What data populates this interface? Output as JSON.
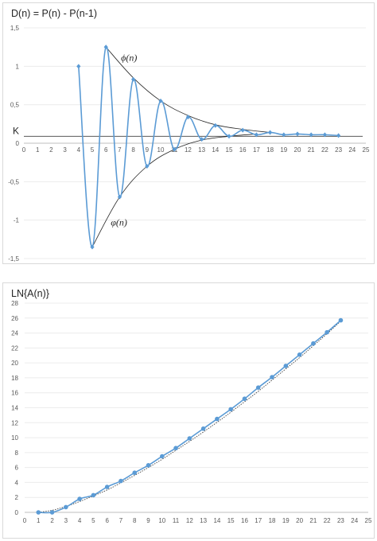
{
  "chart_data": [
    {
      "type": "line",
      "title": "D(n) = P(n) - P(n-1)",
      "xlim": [
        0,
        25
      ],
      "ylim": [
        -1.5,
        1.5
      ],
      "xticks": [
        0,
        1,
        2,
        3,
        4,
        5,
        6,
        7,
        8,
        9,
        10,
        11,
        12,
        13,
        14,
        15,
        16,
        17,
        18,
        19,
        20,
        21,
        22,
        23,
        24,
        25
      ],
      "yticks": [
        -1.5,
        -1,
        -0.5,
        0,
        0.5,
        1,
        1.5
      ],
      "ytick_labels": [
        "-1,5",
        "-1",
        "-0,5",
        "0",
        "0,5",
        "1",
        "1,5"
      ],
      "series": [
        {
          "x": [
            4,
            5,
            6,
            7,
            8,
            9,
            10,
            11,
            12,
            13,
            14,
            15,
            16,
            17,
            18,
            19,
            20,
            21,
            22,
            23
          ],
          "y": [
            1.0,
            -1.35,
            1.25,
            -0.7,
            0.83,
            -0.3,
            0.55,
            -0.08,
            0.34,
            0.05,
            0.23,
            0.09,
            0.17,
            0.11,
            0.14,
            0.11,
            0.12,
            0.11,
            0.11,
            0.1
          ],
          "color": "#5b9bd5"
        }
      ],
      "envelope_upper": {
        "x": [
          6,
          8,
          10,
          12,
          14,
          16,
          18
        ],
        "y": [
          1.25,
          0.85,
          0.55,
          0.36,
          0.24,
          0.18,
          0.14
        ]
      },
      "envelope_lower": {
        "x": [
          5,
          7,
          9,
          11,
          13,
          15,
          17
        ],
        "y": [
          -1.35,
          -0.7,
          -0.3,
          -0.08,
          0.04,
          0.09,
          0.12
        ]
      },
      "k_level": 0.09,
      "annotations": {
        "upper": "ϕ(n)",
        "lower": "φ(n)",
        "k": "K"
      }
    },
    {
      "type": "line",
      "title": "LN{A(n)}",
      "xlim": [
        0,
        25
      ],
      "ylim": [
        0,
        28
      ],
      "xticks": [
        0,
        1,
        2,
        3,
        4,
        5,
        6,
        7,
        8,
        9,
        10,
        11,
        12,
        13,
        14,
        15,
        16,
        17,
        18,
        19,
        20,
        21,
        22,
        23,
        24,
        25
      ],
      "yticks": [
        0,
        2,
        4,
        6,
        8,
        10,
        12,
        14,
        16,
        18,
        20,
        22,
        24,
        26,
        28
      ],
      "series": [
        {
          "x": [
            1,
            2,
            3,
            4,
            5,
            6,
            7,
            8,
            9,
            10,
            11,
            12,
            13,
            14,
            15,
            16,
            17,
            18,
            19,
            20,
            21,
            22,
            23
          ],
          "y": [
            0,
            0,
            0.7,
            1.8,
            2.3,
            3.4,
            4.2,
            5.3,
            6.3,
            7.5,
            8.6,
            9.9,
            11.2,
            12.5,
            13.8,
            15.2,
            16.7,
            18.1,
            19.6,
            21.1,
            22.6,
            24.1,
            25.7
          ],
          "color": "#5b9bd5"
        }
      ],
      "trend": {
        "x": [
          1,
          2,
          3,
          4,
          5,
          6,
          7,
          8,
          9,
          10,
          11,
          12,
          13,
          14,
          15,
          16,
          17,
          18,
          19,
          20,
          21,
          22,
          23
        ],
        "y": [
          0,
          0.28,
          0.8,
          1.45,
          2.2,
          3.0,
          3.95,
          4.95,
          6.0,
          7.1,
          8.3,
          9.5,
          10.75,
          12.05,
          13.4,
          14.8,
          16.2,
          17.7,
          19.2,
          20.7,
          22.3,
          23.9,
          25.6
        ]
      }
    }
  ]
}
